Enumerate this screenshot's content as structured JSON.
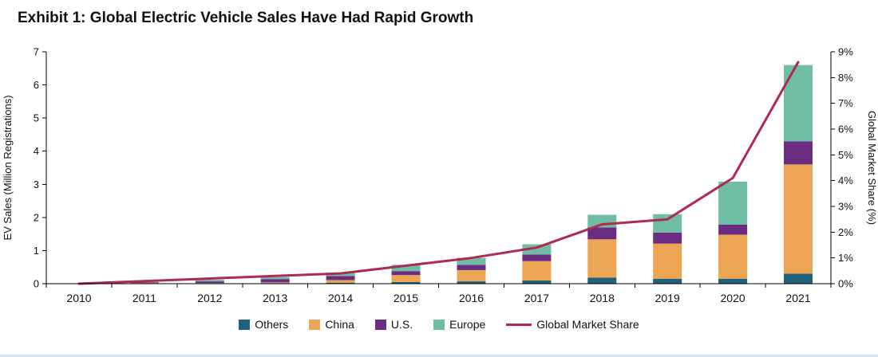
{
  "title": "Exhibit 1: Global Electric Vehicle Sales Have Had Rapid Growth",
  "chart_data": {
    "type": "bar",
    "stacked": true,
    "title": "Exhibit 1: Global Electric Vehicle Sales Have Had Rapid Growth",
    "categories": [
      "2010",
      "2011",
      "2012",
      "2013",
      "2014",
      "2015",
      "2016",
      "2017",
      "2018",
      "2019",
      "2020",
      "2021"
    ],
    "series": [
      {
        "name": "Others",
        "color": "#20617d",
        "values": [
          0.0,
          0.01,
          0.01,
          0.02,
          0.03,
          0.05,
          0.07,
          0.1,
          0.18,
          0.15,
          0.15,
          0.3
        ]
      },
      {
        "name": "China",
        "color": "#eba553",
        "values": [
          0.0,
          0.01,
          0.01,
          0.02,
          0.08,
          0.21,
          0.34,
          0.58,
          1.16,
          1.06,
          1.33,
          3.3
        ]
      },
      {
        "name": "U.S.",
        "color": "#6b2d82",
        "values": [
          0.0,
          0.02,
          0.05,
          0.1,
          0.12,
          0.12,
          0.16,
          0.2,
          0.36,
          0.33,
          0.3,
          0.7
        ]
      },
      {
        "name": "Europe",
        "color": "#6fbda4",
        "values": [
          0.01,
          0.01,
          0.05,
          0.06,
          0.1,
          0.19,
          0.21,
          0.31,
          0.38,
          0.56,
          1.3,
          2.3
        ]
      }
    ],
    "line_series": {
      "name": "Global Market Share",
      "color": "#ae2a52",
      "values": [
        0.0,
        0.1,
        0.2,
        0.3,
        0.4,
        0.7,
        1.0,
        1.4,
        2.3,
        2.5,
        4.1,
        8.6
      ]
    },
    "xlabel": "",
    "ylabel_left": "EV Sales (Million Registrations)",
    "ylabel_right": "Global Market Share (%)",
    "ylim_left": [
      0,
      7
    ],
    "ylim_right": [
      0,
      9
    ],
    "yticks_left": [
      "0",
      "1",
      "2",
      "3",
      "4",
      "5",
      "6",
      "7"
    ],
    "yticks_right": [
      "0%",
      "1%",
      "2%",
      "3%",
      "4%",
      "5%",
      "6%",
      "7%",
      "8%",
      "9%"
    ],
    "grid": false,
    "legend_position": "bottom"
  }
}
